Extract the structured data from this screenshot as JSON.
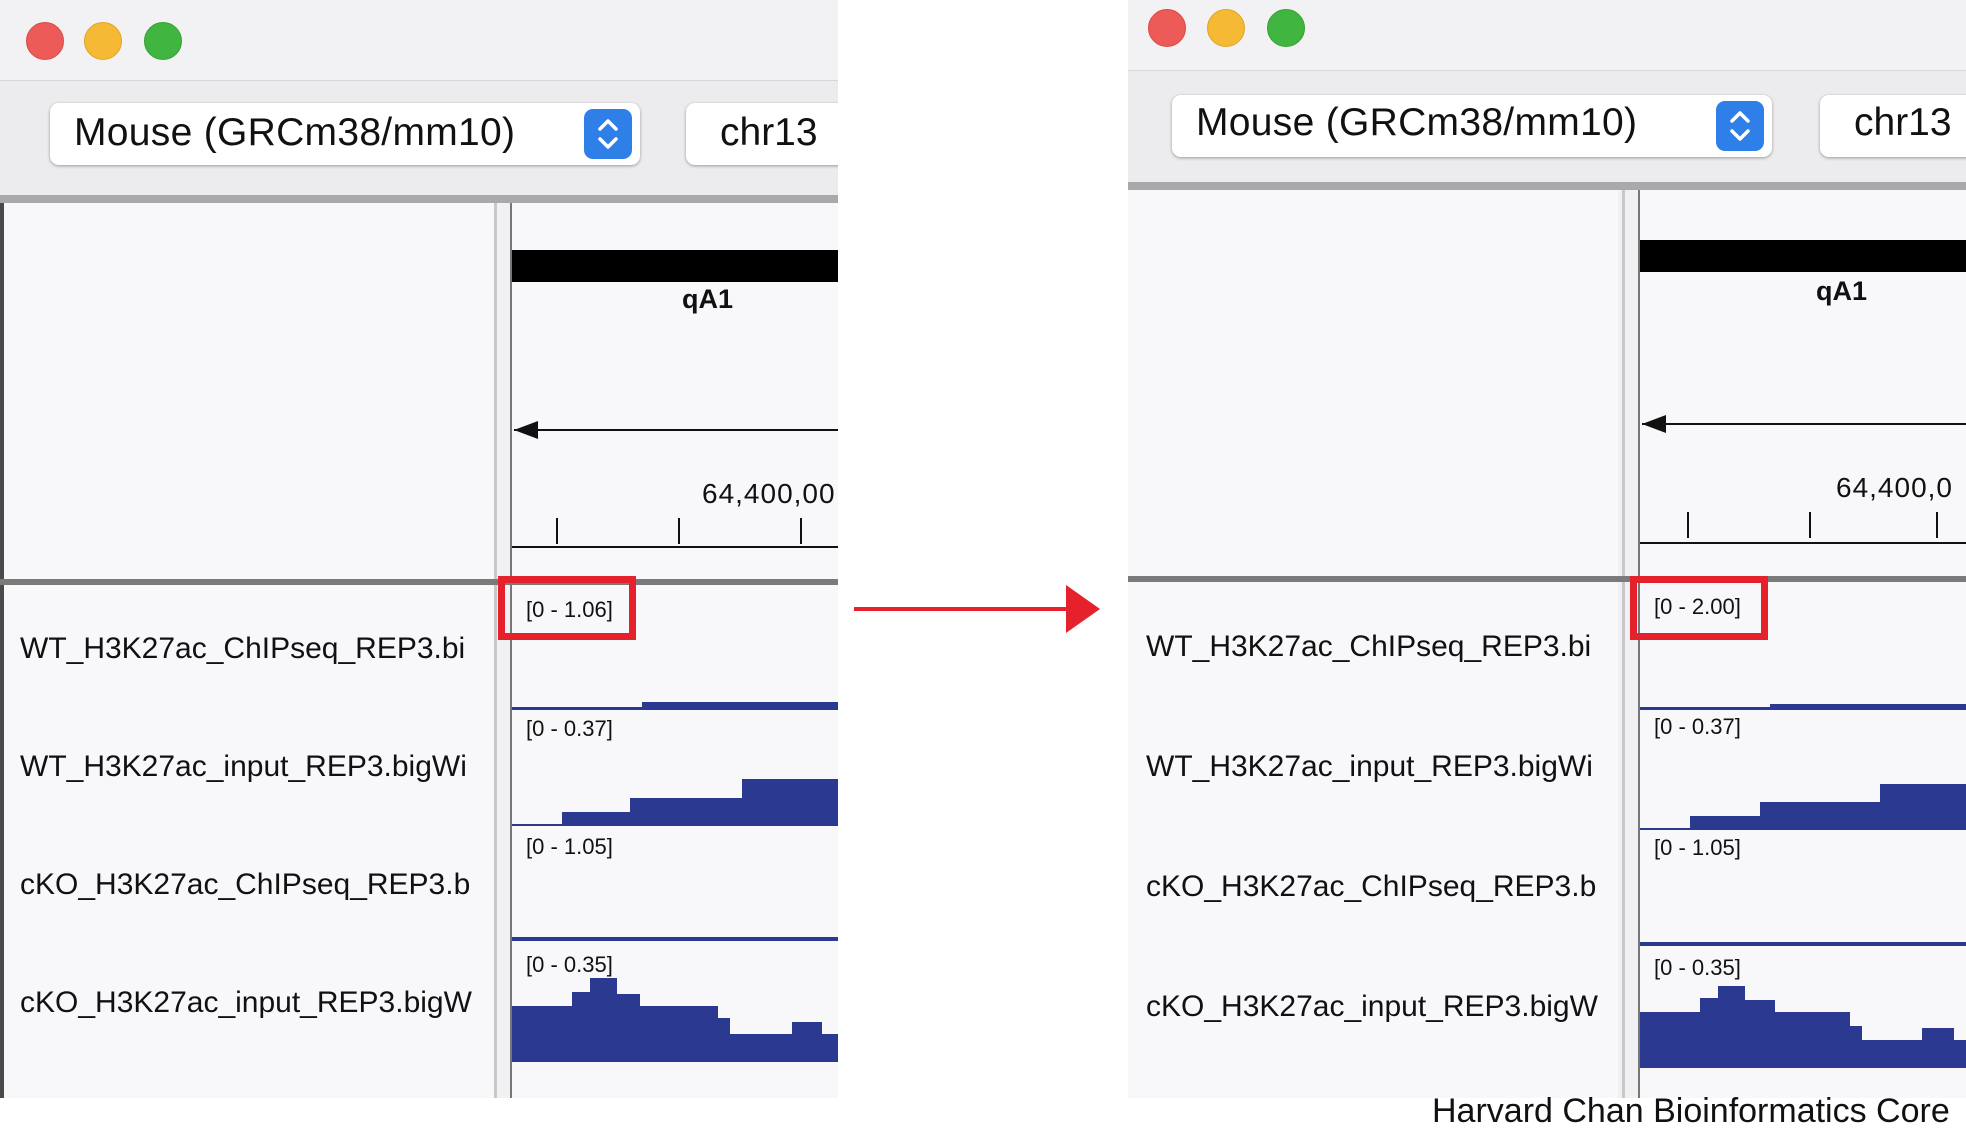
{
  "window_before": {
    "genome_selector": {
      "value": "Mouse (GRCm38/mm10)"
    },
    "chromosome_field": {
      "value": "chr13"
    },
    "cytoband_label": "qA1",
    "position_label": "64,400,00",
    "tracks": [
      {
        "name": "WT_H3K27ac_ChIPseq_REP3.bi",
        "scale": "[0 - 1.06]"
      },
      {
        "name": "WT_H3K27ac_input_REP3.bigWi",
        "scale": "[0 - 0.37]"
      },
      {
        "name": "cKO_H3K27ac_ChIPseq_REP3.b",
        "scale": "[0 - 1.05]"
      },
      {
        "name": "cKO_H3K27ac_input_REP3.bigW",
        "scale": "[0 - 0.35]"
      }
    ]
  },
  "window_after": {
    "genome_selector": {
      "value": "Mouse (GRCm38/mm10)"
    },
    "chromosome_field": {
      "value": "chr13"
    },
    "cytoband_label": "qA1",
    "position_label": "64,400,0",
    "tracks": [
      {
        "name": "WT_H3K27ac_ChIPseq_REP3.bi",
        "scale": "[0 - 2.00]"
      },
      {
        "name": "WT_H3K27ac_input_REP3.bigWi",
        "scale": "[0 - 0.37]"
      },
      {
        "name": "cKO_H3K27ac_ChIPseq_REP3.b",
        "scale": "[0 - 1.05]"
      },
      {
        "name": "cKO_H3K27ac_input_REP3.bigW",
        "scale": "[0 - 0.35]"
      }
    ]
  },
  "credit": "Harvard Chan Bioinformatics Core",
  "colors": {
    "track_fill": "#2b3990",
    "highlight": "#e5212b",
    "arrow": "#e5212b",
    "stepper_blue": "#2f7fe8"
  },
  "icons": [
    "close-light",
    "minimize-light",
    "zoom-light",
    "stepper-chevrons-icon",
    "transition-arrow-icon",
    "strand-arrow-icon"
  ]
}
